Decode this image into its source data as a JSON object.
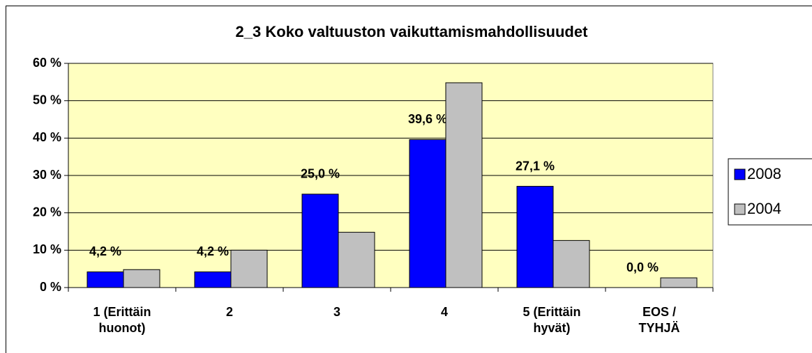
{
  "chart_data": {
    "type": "bar",
    "title": "2_3 Koko valtuuston vaikuttamismahdollisuudet",
    "categories": [
      "1 (Erittäin\nhuonot)",
      "2",
      "3",
      "4",
      "5 (Erittäin\nhyvät)",
      "EOS /\nTYHJÄ"
    ],
    "series": [
      {
        "name": "2008",
        "color": "#0000ff",
        "values": [
          4.2,
          4.2,
          25.0,
          39.6,
          27.1,
          0.0
        ],
        "value_labels": [
          "4,2 %",
          "4,2 %",
          "25,0 %",
          "39,6 %",
          "27,1 %",
          "0,0 %"
        ]
      },
      {
        "name": "2004",
        "color": "#c0c0c0",
        "values": [
          4.8,
          10,
          14.8,
          54.8,
          12.6,
          2.6
        ]
      }
    ],
    "ylim": [
      0,
      60
    ],
    "yticks": [
      {
        "value": 0,
        "label": "0 %"
      },
      {
        "value": 10,
        "label": "10 %"
      },
      {
        "value": 20,
        "label": "20 %"
      },
      {
        "value": 30,
        "label": "30 %"
      },
      {
        "value": 40,
        "label": "40 %"
      },
      {
        "value": 50,
        "label": "50 %"
      },
      {
        "value": 60,
        "label": "60 %"
      }
    ],
    "grid": true,
    "legend": "right",
    "background": "#ffffc0"
  }
}
